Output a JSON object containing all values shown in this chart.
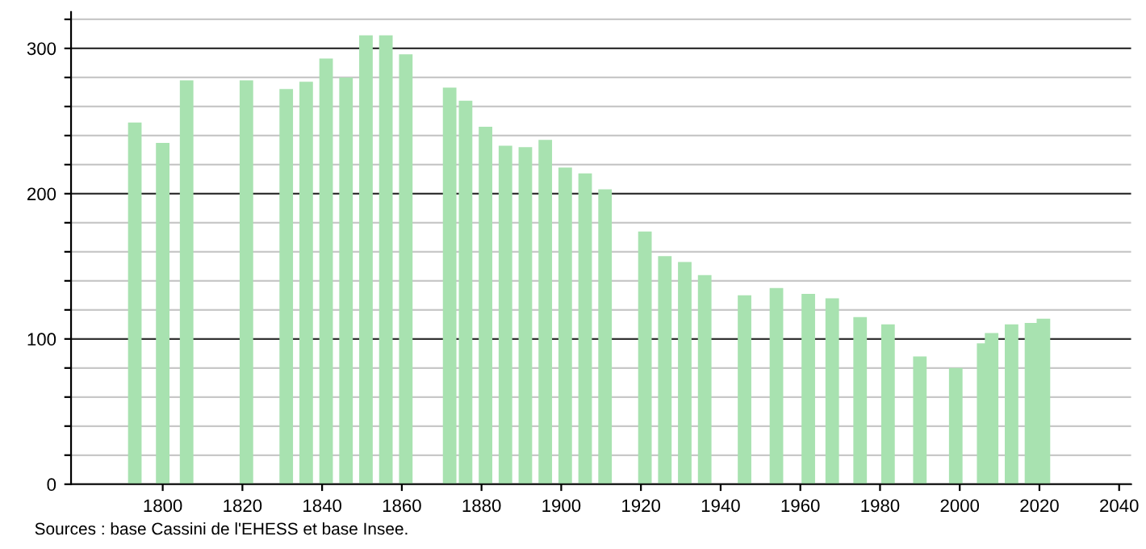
{
  "chart_data": {
    "type": "bar",
    "x": [
      1793,
      1800,
      1806,
      1821,
      1831,
      1836,
      1841,
      1846,
      1851,
      1856,
      1861,
      1872,
      1876,
      1881,
      1886,
      1891,
      1896,
      1901,
      1906,
      1911,
      1921,
      1926,
      1931,
      1936,
      1946,
      1954,
      1962,
      1968,
      1975,
      1982,
      1990,
      1999,
      2006,
      2008,
      2013,
      2018,
      2021
    ],
    "values": [
      249,
      235,
      278,
      278,
      272,
      277,
      293,
      280,
      309,
      309,
      296,
      273,
      264,
      246,
      233,
      232,
      237,
      218,
      214,
      203,
      174,
      157,
      153,
      144,
      130,
      135,
      131,
      128,
      115,
      110,
      88,
      80,
      97,
      104,
      110,
      111,
      114
    ],
    "color": "#a8e2b0",
    "xlim": [
      1777,
      2043
    ],
    "ylim": [
      0,
      325
    ],
    "xticks": [
      1800,
      1820,
      1840,
      1860,
      1880,
      1900,
      1920,
      1940,
      1960,
      1980,
      2000,
      2020,
      2040
    ],
    "yticks": [
      0,
      {
        "value": 20,
        "label": null
      },
      {
        "value": 40,
        "label": null
      },
      {
        "value": 60,
        "label": null
      },
      {
        "value": 80,
        "label": null
      },
      100,
      {
        "value": 120,
        "label": null
      },
      {
        "value": 140,
        "label": null
      },
      {
        "value": 160,
        "label": null
      },
      {
        "value": 180,
        "label": null
      },
      200,
      {
        "value": 220,
        "label": null
      },
      {
        "value": 240,
        "label": null
      },
      {
        "value": 260,
        "label": null
      },
      {
        "value": 280,
        "label": null
      },
      300,
      {
        "value": 320,
        "label": null
      }
    ],
    "grid": "y",
    "annotations": [
      "Sources : base Cassini de l'EHESS et base Insee."
    ]
  }
}
